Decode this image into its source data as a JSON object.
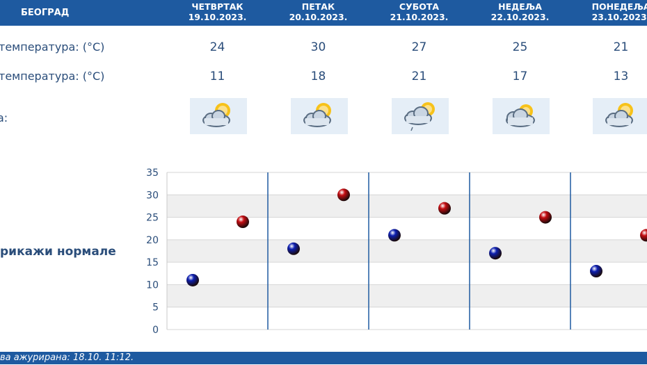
{
  "header": {
    "city": "БЕОГРАД",
    "days": [
      {
        "name": "ЧЕТВРТАК",
        "date": "19.10.2023."
      },
      {
        "name": "ПЕТАК",
        "date": "20.10.2023."
      },
      {
        "name": "СУБОТА",
        "date": "21.10.2023."
      },
      {
        "name": "НЕДЕЉА",
        "date": "22.10.2023."
      },
      {
        "name": "ПОНЕДЕЉА",
        "date": "23.10.2023."
      }
    ]
  },
  "rows": {
    "max_label": "температура: (°C)",
    "min_label": "температура: (°C)",
    "weather_label": "а:",
    "max_values": [
      "24",
      "30",
      "27",
      "25",
      "21"
    ],
    "min_values": [
      "11",
      "18",
      "21",
      "17",
      "13"
    ]
  },
  "icons": [
    "partly-cloudy-sun-icon",
    "partly-cloudy-sun-icon",
    "partly-cloudy-sun-drizzle-icon",
    "cloudy-sun-icon",
    "partly-cloudy-sun-icon"
  ],
  "normals_link": "рикажи нормале",
  "footer": {
    "updated": "ва ажурирана:  18.10. 11:12."
  },
  "colors": {
    "header_bg": "#1e5aa0",
    "text": "#2a4d7a",
    "min_marker": "#0d1fb0",
    "max_marker": "#c40d12",
    "grid_band": "#efefef"
  },
  "chart_data": {
    "type": "scatter",
    "categories": [
      "19.10.2023.",
      "20.10.2023.",
      "21.10.2023.",
      "22.10.2023.",
      "23.10.2023."
    ],
    "series": [
      {
        "values": [
          11,
          18,
          21,
          17,
          13
        ],
        "color": "#0d1fb0"
      },
      {
        "values": [
          24,
          30,
          27,
          25,
          21
        ],
        "color": "#c40d12"
      }
    ],
    "yticks": [
      0,
      5,
      10,
      15,
      20,
      25,
      30,
      35
    ],
    "ylim": [
      0,
      35
    ],
    "grid": true
  }
}
